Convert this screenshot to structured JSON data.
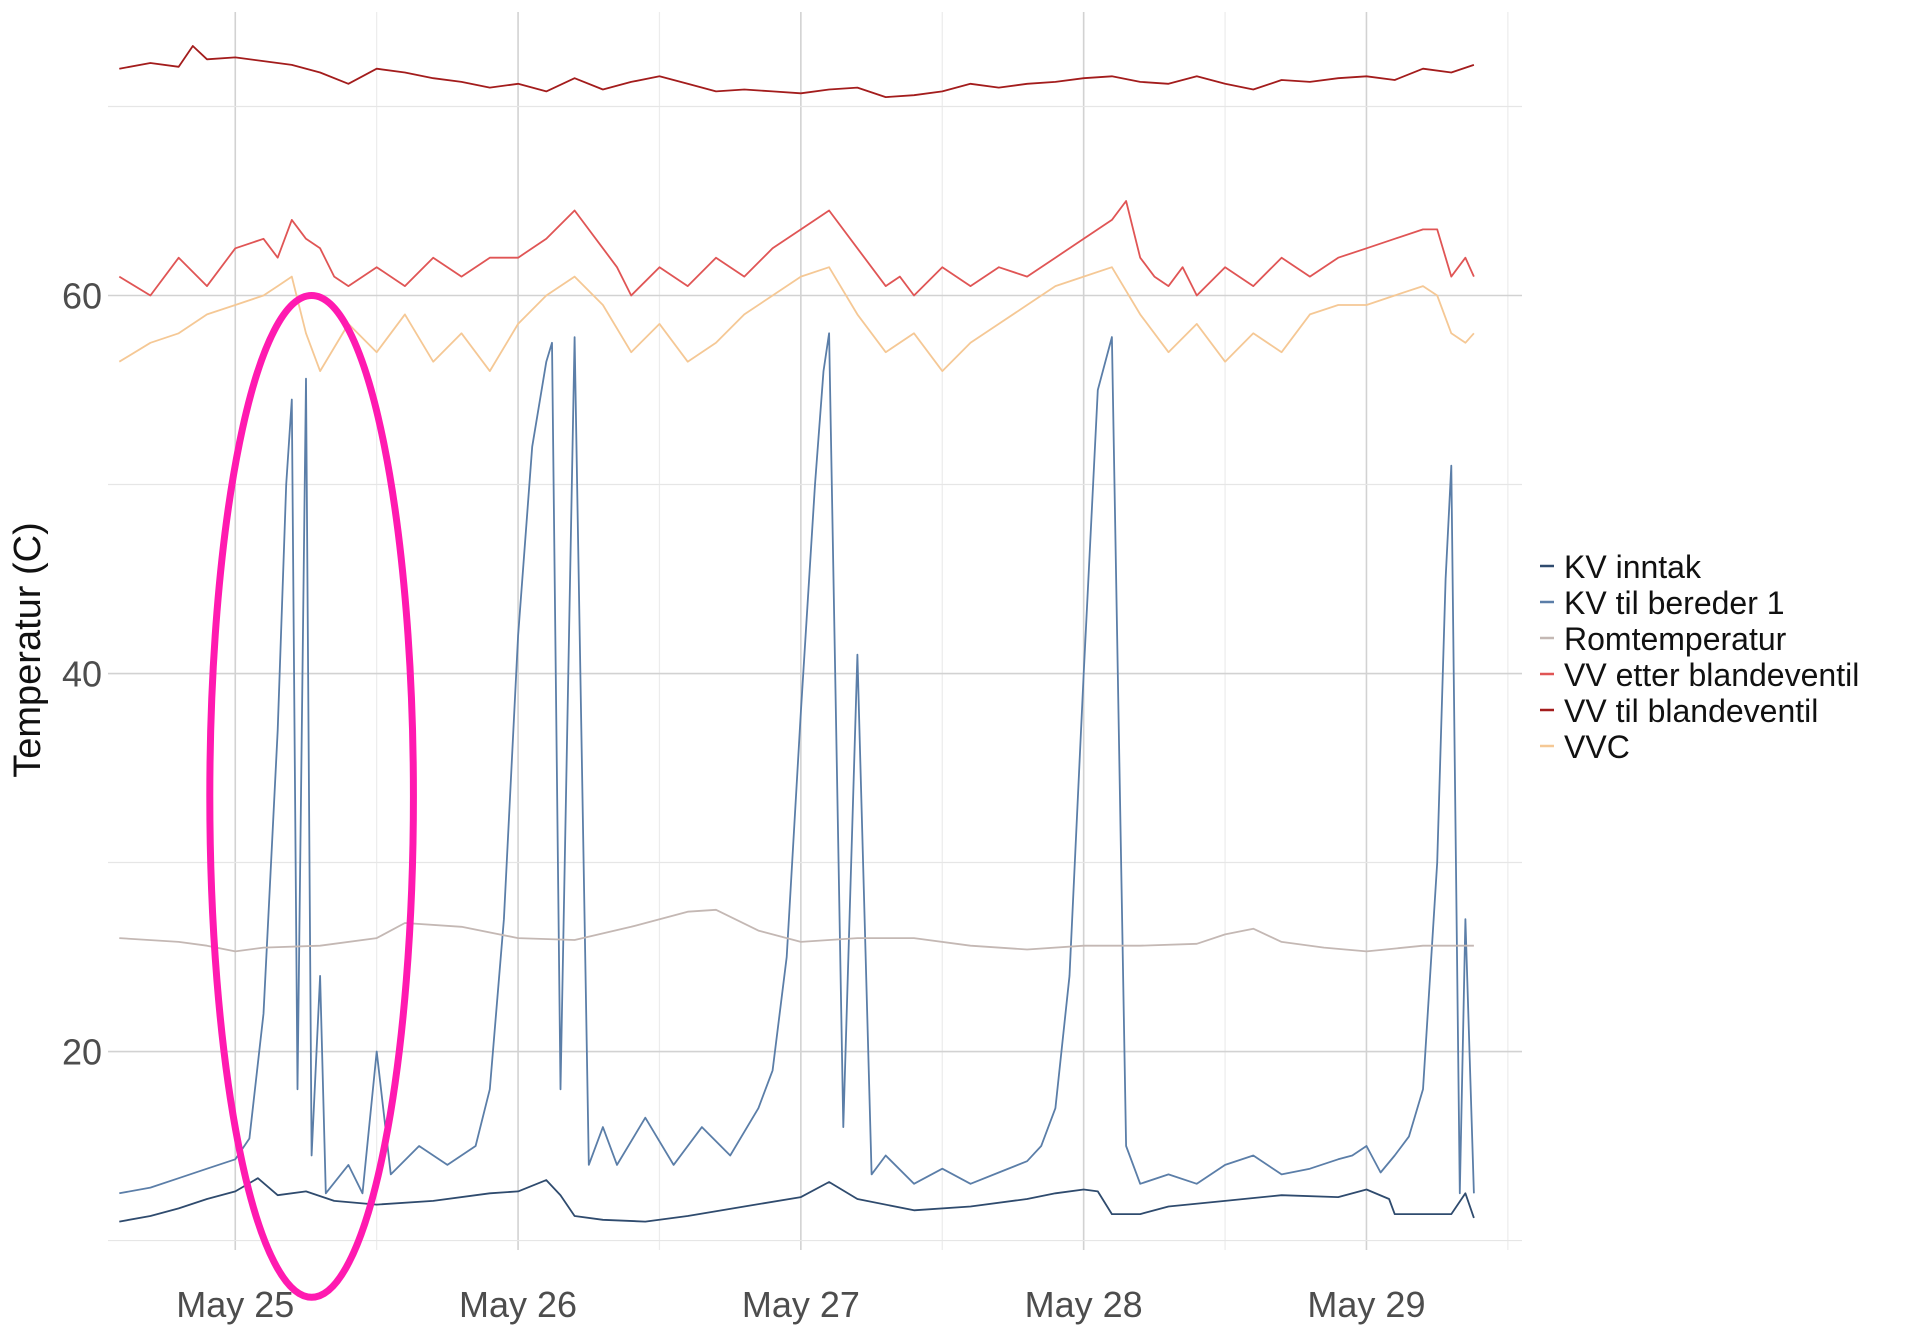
{
  "chart_data": {
    "type": "line",
    "title": "",
    "xlabel": "",
    "ylabel": "Temperatur (C)",
    "xlim": [
      24.55,
      29.55
    ],
    "ylim": [
      9.5,
      75
    ],
    "x_unit": "day of May",
    "x_ticks": [
      {
        "value": 25,
        "label": "May 25"
      },
      {
        "value": 26,
        "label": "May 26"
      },
      {
        "value": 27,
        "label": "May 27"
      },
      {
        "value": 28,
        "label": "May 28"
      },
      {
        "value": 29,
        "label": "May 29"
      }
    ],
    "y_ticks": [
      {
        "value": 20,
        "label": "20"
      },
      {
        "value": 40,
        "label": "40"
      },
      {
        "value": 60,
        "label": "60"
      }
    ],
    "grid": true,
    "legend_position": "right",
    "series": [
      {
        "name": "KV inntak",
        "color": "#2f4b6e",
        "x": [
          24.59,
          24.7,
          24.8,
          24.9,
          25.0,
          25.08,
          25.15,
          25.25,
          25.35,
          25.5,
          25.7,
          25.9,
          26.0,
          26.1,
          26.15,
          26.2,
          26.3,
          26.45,
          26.6,
          26.8,
          27.0,
          27.1,
          27.2,
          27.4,
          27.6,
          27.8,
          27.9,
          28.0,
          28.05,
          28.1,
          28.2,
          28.3,
          28.5,
          28.7,
          28.9,
          29.0,
          29.08,
          29.1,
          29.2,
          29.3,
          29.35,
          29.38
        ],
        "y": [
          11.0,
          11.3,
          11.7,
          12.2,
          12.6,
          13.3,
          12.4,
          12.6,
          12.1,
          11.9,
          12.1,
          12.5,
          12.6,
          13.2,
          12.4,
          11.3,
          11.1,
          11.0,
          11.3,
          11.8,
          12.3,
          13.1,
          12.2,
          11.6,
          11.8,
          12.2,
          12.5,
          12.7,
          12.6,
          11.4,
          11.4,
          11.8,
          12.1,
          12.4,
          12.3,
          12.7,
          12.2,
          11.4,
          11.4,
          11.4,
          12.5,
          11.2
        ]
      },
      {
        "name": "KV til bereder 1",
        "color": "#5b7ea8",
        "x": [
          24.59,
          24.7,
          24.8,
          24.9,
          25.0,
          25.05,
          25.1,
          25.15,
          25.18,
          25.2,
          25.22,
          25.25,
          25.27,
          25.3,
          25.32,
          25.4,
          25.45,
          25.5,
          25.55,
          25.65,
          25.75,
          25.85,
          25.9,
          25.95,
          26.0,
          26.05,
          26.1,
          26.12,
          26.15,
          26.2,
          26.25,
          26.3,
          26.35,
          26.45,
          26.55,
          26.65,
          26.75,
          26.85,
          26.9,
          26.95,
          27.0,
          27.05,
          27.08,
          27.1,
          27.15,
          27.2,
          27.25,
          27.3,
          27.4,
          27.5,
          27.6,
          27.7,
          27.8,
          27.85,
          27.9,
          27.95,
          28.0,
          28.05,
          28.1,
          28.15,
          28.2,
          28.3,
          28.4,
          28.5,
          28.6,
          28.7,
          28.8,
          28.9,
          28.95,
          29.0,
          29.05,
          29.1,
          29.15,
          29.2,
          29.25,
          29.28,
          29.3,
          29.33,
          29.35,
          29.38
        ],
        "y": [
          12.5,
          12.8,
          13.3,
          13.8,
          14.3,
          15.4,
          22.0,
          37.0,
          50.0,
          54.5,
          18.0,
          55.6,
          14.5,
          24.0,
          12.5,
          14.0,
          12.5,
          20.0,
          13.5,
          15.0,
          14.0,
          15.0,
          18.0,
          27.0,
          42.0,
          52.0,
          56.5,
          57.5,
          18.0,
          57.8,
          14.0,
          16.0,
          14.0,
          16.5,
          14.0,
          16.0,
          14.5,
          17.0,
          19.0,
          25.0,
          38.0,
          50.0,
          56.0,
          58.0,
          16.0,
          41.0,
          13.5,
          14.5,
          13.0,
          13.8,
          13.0,
          13.6,
          14.2,
          15.0,
          17.0,
          24.0,
          40.0,
          55.0,
          57.8,
          15.0,
          13.0,
          13.5,
          13.0,
          14.0,
          14.5,
          13.5,
          13.8,
          14.3,
          14.5,
          15.0,
          13.6,
          14.5,
          15.5,
          18.0,
          30.0,
          45.0,
          51.0,
          12.5,
          27.0,
          12.5
        ]
      },
      {
        "name": "Romtemperatur",
        "color": "#c4b8b4",
        "x": [
          24.59,
          24.8,
          24.9,
          25.0,
          25.1,
          25.3,
          25.5,
          25.6,
          25.8,
          26.0,
          26.2,
          26.4,
          26.6,
          26.7,
          26.85,
          27.0,
          27.2,
          27.4,
          27.6,
          27.8,
          28.0,
          28.2,
          28.4,
          28.5,
          28.6,
          28.7,
          28.85,
          29.0,
          29.2,
          29.38
        ],
        "y": [
          26.0,
          25.8,
          25.6,
          25.3,
          25.5,
          25.6,
          26.0,
          26.8,
          26.6,
          26.0,
          25.9,
          26.6,
          27.4,
          27.5,
          26.4,
          25.8,
          26.0,
          26.0,
          25.6,
          25.4,
          25.6,
          25.6,
          25.7,
          26.2,
          26.5,
          25.8,
          25.5,
          25.3,
          25.6,
          25.6
        ]
      },
      {
        "name": "VV etter blandeventil",
        "color": "#e05555",
        "x": [
          24.59,
          24.7,
          24.8,
          24.9,
          25.0,
          25.1,
          25.15,
          25.2,
          25.25,
          25.3,
          25.35,
          25.4,
          25.5,
          25.6,
          25.7,
          25.8,
          25.9,
          26.0,
          26.1,
          26.2,
          26.3,
          26.35,
          26.4,
          26.5,
          26.6,
          26.7,
          26.8,
          26.9,
          27.0,
          27.1,
          27.2,
          27.3,
          27.35,
          27.4,
          27.5,
          27.6,
          27.7,
          27.8,
          27.9,
          28.0,
          28.1,
          28.15,
          28.2,
          28.25,
          28.3,
          28.35,
          28.4,
          28.5,
          28.6,
          28.7,
          28.8,
          28.9,
          29.0,
          29.1,
          29.2,
          29.25,
          29.3,
          29.35,
          29.38
        ],
        "y": [
          61.0,
          60.0,
          62.0,
          60.5,
          62.5,
          63.0,
          62.0,
          64.0,
          63.0,
          62.5,
          61.0,
          60.5,
          61.5,
          60.5,
          62.0,
          61.0,
          62.0,
          62.0,
          63.0,
          64.5,
          62.5,
          61.5,
          60.0,
          61.5,
          60.5,
          62.0,
          61.0,
          62.5,
          63.5,
          64.5,
          62.5,
          60.5,
          61.0,
          60.0,
          61.5,
          60.5,
          61.5,
          61.0,
          62.0,
          63.0,
          64.0,
          65.0,
          62.0,
          61.0,
          60.5,
          61.5,
          60.0,
          61.5,
          60.5,
          62.0,
          61.0,
          62.0,
          62.5,
          63.0,
          63.5,
          63.5,
          61.0,
          62.0,
          61.0
        ]
      },
      {
        "name": "VV til blandeventil",
        "color": "#a31c1c",
        "x": [
          24.59,
          24.7,
          24.8,
          24.85,
          24.9,
          25.0,
          25.1,
          25.2,
          25.3,
          25.4,
          25.5,
          25.6,
          25.7,
          25.8,
          25.9,
          26.0,
          26.1,
          26.2,
          26.3,
          26.4,
          26.5,
          26.6,
          26.7,
          26.8,
          26.9,
          27.0,
          27.1,
          27.2,
          27.3,
          27.4,
          27.5,
          27.6,
          27.7,
          27.8,
          27.9,
          28.0,
          28.1,
          28.2,
          28.3,
          28.4,
          28.5,
          28.6,
          28.7,
          28.8,
          28.9,
          29.0,
          29.1,
          29.2,
          29.3,
          29.38
        ],
        "y": [
          72.0,
          72.3,
          72.1,
          73.2,
          72.5,
          72.6,
          72.4,
          72.2,
          71.8,
          71.2,
          72.0,
          71.8,
          71.5,
          71.3,
          71.0,
          71.2,
          70.8,
          71.5,
          70.9,
          71.3,
          71.6,
          71.2,
          70.8,
          70.9,
          70.8,
          70.7,
          70.9,
          71.0,
          70.5,
          70.6,
          70.8,
          71.2,
          71.0,
          71.2,
          71.3,
          71.5,
          71.6,
          71.3,
          71.2,
          71.6,
          71.2,
          70.9,
          71.4,
          71.3,
          71.5,
          71.6,
          71.4,
          72.0,
          71.8,
          72.2
        ]
      },
      {
        "name": "VVC",
        "color": "#f5c895",
        "x": [
          24.59,
          24.7,
          24.8,
          24.9,
          25.0,
          25.1,
          25.15,
          25.2,
          25.25,
          25.3,
          25.4,
          25.5,
          25.6,
          25.7,
          25.8,
          25.9,
          26.0,
          26.1,
          26.2,
          26.3,
          26.4,
          26.5,
          26.6,
          26.7,
          26.8,
          26.9,
          27.0,
          27.1,
          27.2,
          27.3,
          27.4,
          27.5,
          27.6,
          27.7,
          27.8,
          27.9,
          28.0,
          28.1,
          28.2,
          28.3,
          28.4,
          28.5,
          28.6,
          28.7,
          28.8,
          28.9,
          29.0,
          29.1,
          29.2,
          29.25,
          29.3,
          29.35,
          29.38
        ],
        "y": [
          56.5,
          57.5,
          58.0,
          59.0,
          59.5,
          60.0,
          60.5,
          61.0,
          58.0,
          56.0,
          58.5,
          57.0,
          59.0,
          56.5,
          58.0,
          56.0,
          58.5,
          60.0,
          61.0,
          59.5,
          57.0,
          58.5,
          56.5,
          57.5,
          59.0,
          60.0,
          61.0,
          61.5,
          59.0,
          57.0,
          58.0,
          56.0,
          57.5,
          58.5,
          59.5,
          60.5,
          61.0,
          61.5,
          59.0,
          57.0,
          58.5,
          56.5,
          58.0,
          57.0,
          59.0,
          59.5,
          59.5,
          60.0,
          60.5,
          60.0,
          58.0,
          57.5,
          58.0
        ]
      }
    ],
    "annotations": [
      {
        "shape": "ellipse",
        "color": "#ff1ab0",
        "cx": 25.27,
        "cy": 33.5,
        "rx": 0.36,
        "ry": 26.5
      }
    ]
  }
}
